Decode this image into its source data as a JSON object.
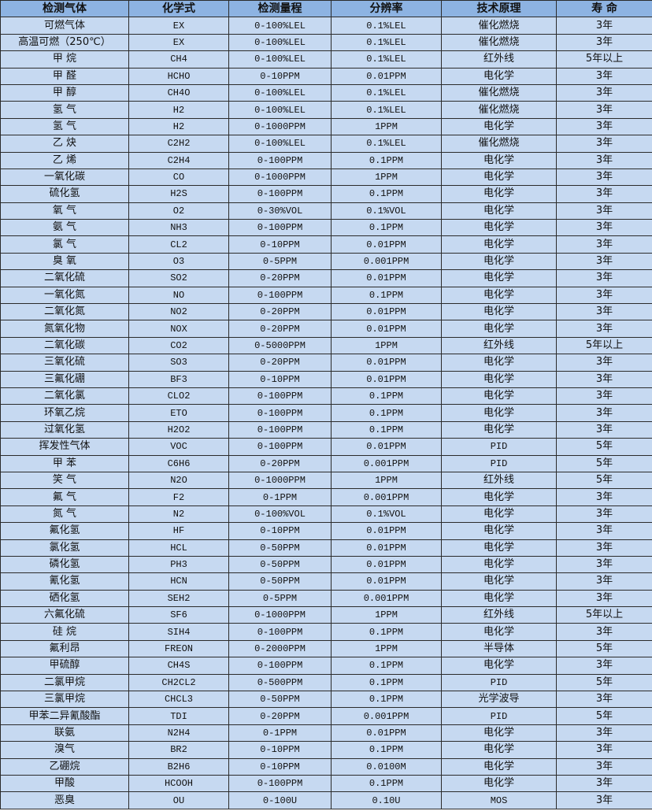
{
  "table": {
    "headers": [
      "检测气体",
      "化学式",
      "检测量程",
      "分辨率",
      "技术原理",
      "寿 命"
    ],
    "rows": [
      [
        "可燃气体",
        "EX",
        "0-100%LEL",
        "0.1%LEL",
        "催化燃烧",
        "3年"
      ],
      [
        "高温可燃（250℃）",
        "EX",
        "0-100%LEL",
        "0.1%LEL",
        "催化燃烧",
        "3年"
      ],
      [
        "甲 烷",
        "CH4",
        "0-100%LEL",
        "0.1%LEL",
        "红外线",
        "5年以上"
      ],
      [
        "甲 醛",
        "HCHO",
        "0-10PPM",
        "0.01PPM",
        "电化学",
        "3年"
      ],
      [
        "甲 醇",
        "CH4O",
        "0-100%LEL",
        "0.1%LEL",
        "催化燃烧",
        "3年"
      ],
      [
        "氢 气",
        "H2",
        "0-100%LEL",
        "0.1%LEL",
        "催化燃烧",
        "3年"
      ],
      [
        "氢 气",
        "H2",
        "0-1000PPM",
        "1PPM",
        "电化学",
        "3年"
      ],
      [
        "乙 炔",
        "C2H2",
        "0-100%LEL",
        "0.1%LEL",
        "催化燃烧",
        "3年"
      ],
      [
        "乙 烯",
        "C2H4",
        "0-100PPM",
        "0.1PPM",
        "电化学",
        "3年"
      ],
      [
        "一氧化碳",
        "CO",
        "0-1000PPM",
        "1PPM",
        "电化学",
        "3年"
      ],
      [
        "硫化氢",
        "H2S",
        "0-100PPM",
        "0.1PPM",
        "电化学",
        "3年"
      ],
      [
        "氧 气",
        "O2",
        "0-30%VOL",
        "0.1%VOL",
        "电化学",
        "3年"
      ],
      [
        "氨 气",
        "NH3",
        "0-100PPM",
        "0.1PPM",
        "电化学",
        "3年"
      ],
      [
        "氯 气",
        "CL2",
        "0-10PPM",
        "0.01PPM",
        "电化学",
        "3年"
      ],
      [
        "臭 氧",
        "O3",
        "0-5PPM",
        "0.001PPM",
        "电化学",
        "3年"
      ],
      [
        "二氧化硫",
        "SO2",
        "0-20PPM",
        "0.01PPM",
        "电化学",
        "3年"
      ],
      [
        "一氧化氮",
        "NO",
        "0-100PPM",
        "0.1PPM",
        "电化学",
        "3年"
      ],
      [
        "二氧化氮",
        "NO2",
        "0-20PPM",
        "0.01PPM",
        "电化学",
        "3年"
      ],
      [
        "氮氧化物",
        "NOX",
        "0-20PPM",
        "0.01PPM",
        "电化学",
        "3年"
      ],
      [
        "二氧化碳",
        "CO2",
        "0-5000PPM",
        "1PPM",
        "红外线",
        "5年以上"
      ],
      [
        "三氧化硫",
        "SO3",
        "0-20PPM",
        "0.01PPM",
        "电化学",
        "3年"
      ],
      [
        "三氟化硼",
        "BF3",
        "0-10PPM",
        "0.01PPM",
        "电化学",
        "3年"
      ],
      [
        "二氧化氯",
        "CLO2",
        "0-100PPM",
        "0.1PPM",
        "电化学",
        "3年"
      ],
      [
        "环氧乙烷",
        "ETO",
        "0-100PPM",
        "0.1PPM",
        "电化学",
        "3年"
      ],
      [
        "过氧化氢",
        "H2O2",
        "0-100PPM",
        "0.1PPM",
        "电化学",
        "3年"
      ],
      [
        "挥发性气体",
        "VOC",
        "0-100PPM",
        "0.01PPM",
        "PID",
        "5年"
      ],
      [
        "甲 苯",
        "C6H6",
        "0-20PPM",
        "0.001PPM",
        "PID",
        "5年"
      ],
      [
        "笑 气",
        "N2O",
        "0-1000PPM",
        "1PPM",
        "红外线",
        "5年"
      ],
      [
        "氟 气",
        "F2",
        "0-1PPM",
        "0.001PPM",
        "电化学",
        "3年"
      ],
      [
        "氮 气",
        "N2",
        "0-100%VOL",
        "0.1%VOL",
        "电化学",
        "3年"
      ],
      [
        "氟化氢",
        "HF",
        "0-10PPM",
        "0.01PPM",
        "电化学",
        "3年"
      ],
      [
        "氯化氢",
        "HCL",
        "0-50PPM",
        "0.01PPM",
        "电化学",
        "3年"
      ],
      [
        "磷化氢",
        "PH3",
        "0-50PPM",
        "0.01PPM",
        "电化学",
        "3年"
      ],
      [
        "氰化氢",
        "HCN",
        "0-50PPM",
        "0.01PPM",
        "电化学",
        "3年"
      ],
      [
        "硒化氢",
        "SEH2",
        "0-5PPM",
        "0.001PPM",
        "电化学",
        "3年"
      ],
      [
        "六氟化硫",
        "SF6",
        "0-1000PPM",
        "1PPM",
        "红外线",
        "5年以上"
      ],
      [
        "硅 烷",
        "SIH4",
        "0-100PPM",
        "0.1PPM",
        "电化学",
        "3年"
      ],
      [
        "氟利昂",
        "FREON",
        "0-2000PPM",
        "1PPM",
        "半导体",
        "5年"
      ],
      [
        "甲硫醇",
        "CH4S",
        "0-100PPM",
        "0.1PPM",
        "电化学",
        "3年"
      ],
      [
        "二氯甲烷",
        "CH2CL2",
        "0-500PPM",
        "0.1PPM",
        "PID",
        "5年"
      ],
      [
        "三氯甲烷",
        "CHCL3",
        "0-50PPM",
        "0.1PPM",
        "光学波导",
        "3年"
      ],
      [
        "甲苯二异氰酸酯",
        "TDI",
        "0-20PPM",
        "0.001PPM",
        "PID",
        "5年"
      ],
      [
        "联氨",
        "N2H4",
        "0-1PPM",
        "0.01PPM",
        "电化学",
        "3年"
      ],
      [
        "溴气",
        "BR2",
        "0-10PPM",
        "0.1PPM",
        "电化学",
        "3年"
      ],
      [
        "乙硼烷",
        "B2H6",
        "0-10PPM",
        "0.0100M",
        "电化学",
        "3年"
      ],
      [
        "甲酸",
        "HCOOH",
        "0-100PPM",
        "0.1PPM",
        "电化学",
        "3年"
      ],
      [
        "恶臭",
        "OU",
        "0-100U",
        "0.10U",
        "MOS",
        "3年"
      ]
    ]
  },
  "colors": {
    "header_bg": "#8db3e2",
    "row_bg": "#c6d9f1",
    "border": "#2b2b2b"
  }
}
